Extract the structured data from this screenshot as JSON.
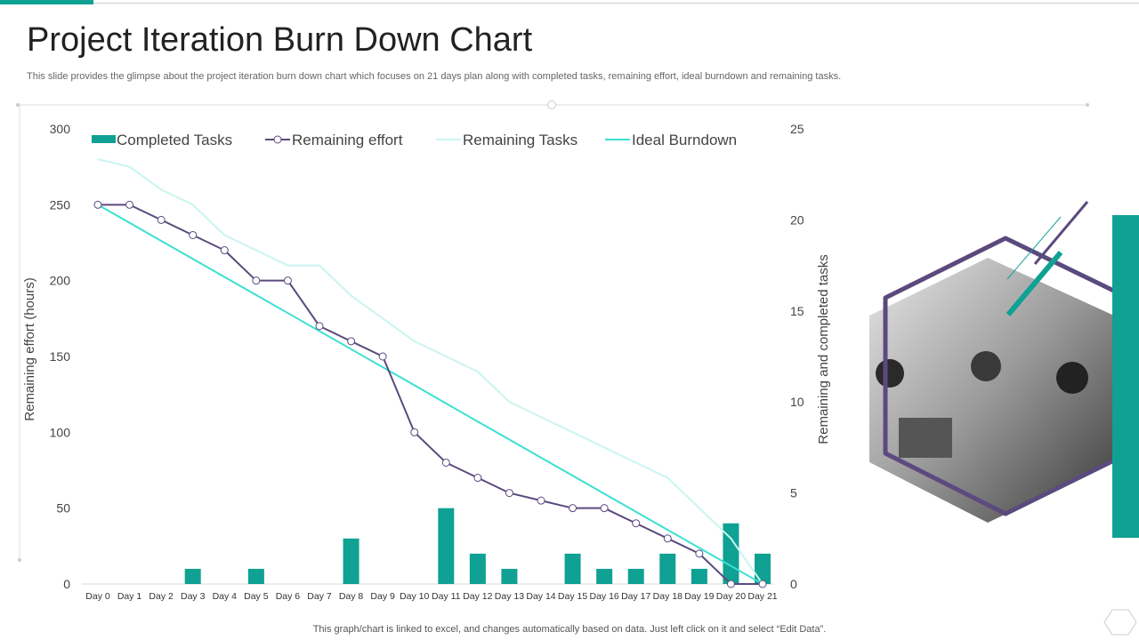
{
  "header": {
    "title": "Project Iteration Burn Down Chart",
    "subtitle": "This slide provides the glimpse about the project iteration burn down chart which focuses on 21 days plan along with completed tasks, remaining effort, ideal burndown and remaining tasks."
  },
  "footer": {
    "note": "This graph/chart is linked to excel,  and changes automatically based on data. Just left click on it and select “Edit Data”."
  },
  "colors": {
    "accent": "#0fa193",
    "purple": "#5b4a7e",
    "light_cyan": "#c8f5f0",
    "cyan": "#3de0d2"
  },
  "chart_data": {
    "type": "combo bar/line",
    "categories": [
      "Day 0",
      "Day 1",
      "Day 2",
      "Day 3",
      "Day 4",
      "Day 5",
      "Day 6",
      "Day 7",
      "Day 8",
      "Day 9",
      "Day 10",
      "Day 11",
      "Day 12",
      "Day 13",
      "Day 14",
      "Day 15",
      "Day 16",
      "Day 17",
      "Day 18",
      "Day 19",
      "Day 20",
      "Day 21"
    ],
    "ylabel": "Remaining effort (hours)",
    "y2label": "Remaining and completed tasks",
    "ylim": [
      0,
      300
    ],
    "yticks": [
      "0",
      "50",
      "100",
      "150",
      "200",
      "250",
      "300"
    ],
    "y2lim": [
      0,
      25
    ],
    "y2ticks": [
      "0",
      "5",
      "10",
      "15",
      "20",
      "25"
    ],
    "grid": false,
    "legend": "top",
    "series": [
      {
        "name": "Completed Tasks",
        "kind": "bar",
        "color": "#0fa193",
        "values": [
          0,
          0,
          0,
          10,
          0,
          10,
          0,
          0,
          30,
          0,
          0,
          50,
          20,
          10,
          0,
          20,
          10,
          10,
          20,
          10,
          40,
          20
        ]
      },
      {
        "name": "Remaining effort",
        "kind": "line-marker",
        "color": "#5b4a7e",
        "values": [
          250,
          250,
          240,
          230,
          220,
          200,
          200,
          170,
          160,
          150,
          100,
          80,
          70,
          60,
          55,
          50,
          50,
          40,
          30,
          20,
          0,
          0
        ]
      },
      {
        "name": "Remaining Tasks",
        "kind": "line",
        "color": "#c8f5f0",
        "values": [
          280,
          275,
          260,
          250,
          230,
          220,
          210,
          210,
          190,
          175,
          160,
          150,
          140,
          120,
          110,
          100,
          90,
          80,
          70,
          50,
          30,
          0
        ]
      },
      {
        "name": "Ideal Burndown",
        "kind": "line",
        "color": "#3de0d2",
        "values": [
          250,
          238.1,
          226.2,
          214.3,
          202.4,
          190.5,
          178.6,
          166.7,
          154.8,
          142.9,
          131,
          119,
          107.1,
          95.2,
          83.3,
          71.4,
          59.5,
          47.6,
          35.7,
          23.8,
          11.9,
          0
        ]
      }
    ]
  }
}
